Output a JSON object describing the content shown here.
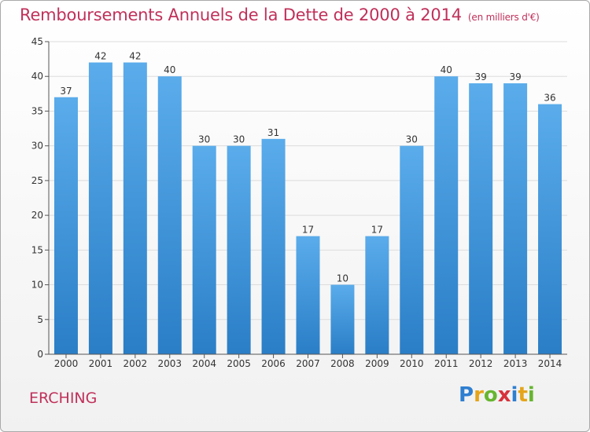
{
  "title": "Remboursements Annuels de la Dette de 2000 à 2014",
  "unit_label": "(en milliers d'€)",
  "commune": "ERCHING",
  "logo": {
    "text": "Proxiti",
    "letters": [
      {
        "ch": "P",
        "color": "#2f7fd0"
      },
      {
        "ch": "r",
        "color": "#e5a51a"
      },
      {
        "ch": "o",
        "color": "#67b52f"
      },
      {
        "ch": "x",
        "color": "#d8323b"
      },
      {
        "ch": "i",
        "color": "#2f7fd0"
      },
      {
        "ch": "t",
        "color": "#e5a51a"
      },
      {
        "ch": "i",
        "color": "#67b52f"
      }
    ]
  },
  "colors": {
    "bar_top": "#5aaceb",
    "bar_bottom": "#2a7ec6",
    "text": "#c0305a",
    "grid": "#dcdcdc"
  },
  "chart_data": {
    "type": "bar",
    "categories": [
      "2000",
      "2001",
      "2002",
      "2003",
      "2004",
      "2005",
      "2006",
      "2007",
      "2008",
      "2009",
      "2010",
      "2011",
      "2012",
      "2013",
      "2014"
    ],
    "values": [
      37,
      42,
      42,
      40,
      30,
      30,
      31,
      17,
      10,
      17,
      30,
      40,
      39,
      39,
      36
    ],
    "ylim": [
      0,
      45
    ],
    "yticks": [
      0,
      5,
      10,
      15,
      20,
      25,
      30,
      35,
      40,
      45
    ],
    "grid": true,
    "data_labels": true
  }
}
